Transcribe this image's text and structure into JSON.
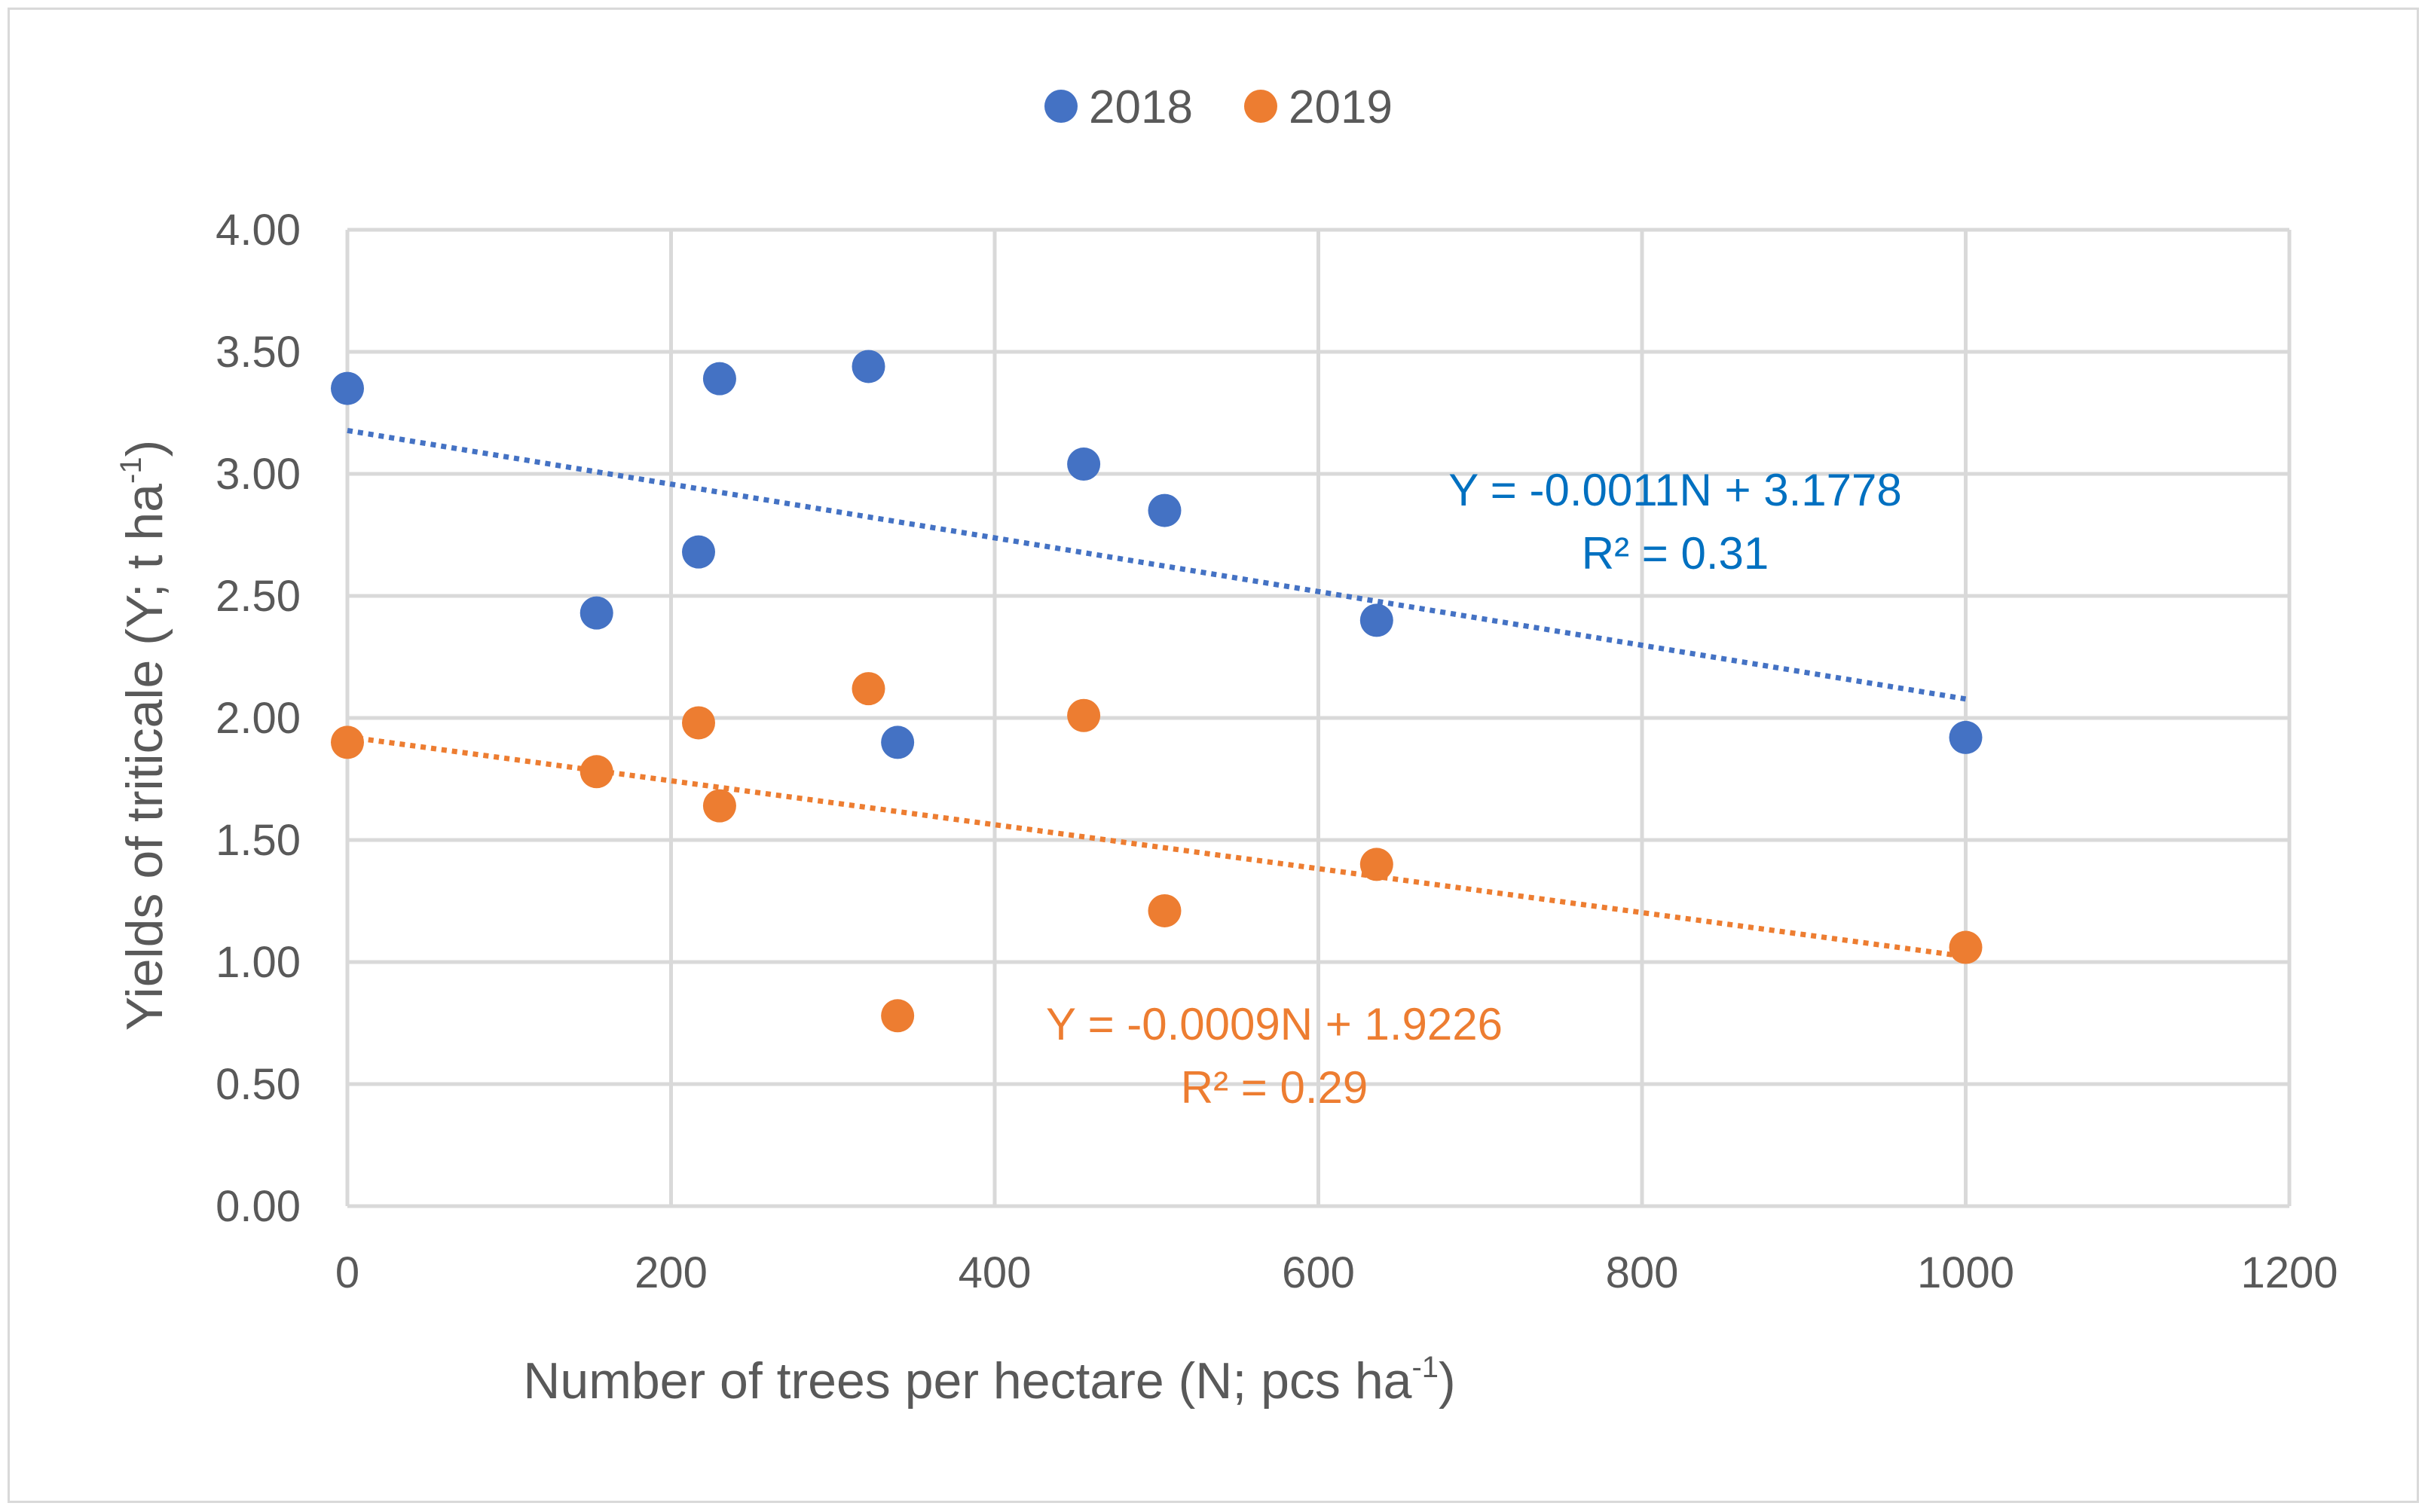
{
  "chart_data": {
    "type": "scatter",
    "xlabel": "Number of trees per hectare (N; pcs ha",
    "xlabel_sup": "-1",
    "xlabel_end": ")",
    "ylabel": "Yields of triticale (Y; t ha",
    "ylabel_sup": "-1",
    "ylabel_end": ")",
    "xlim": [
      0,
      1200
    ],
    "ylim": [
      0,
      4
    ],
    "x_ticks": [
      "0",
      "200",
      "400",
      "600",
      "800",
      "1000",
      "1200"
    ],
    "y_ticks": [
      "0.00",
      "0.50",
      "1.00",
      "1.50",
      "2.00",
      "2.50",
      "3.00",
      "3.50",
      "4.00"
    ],
    "grid": true,
    "legend": "top-center",
    "series": [
      {
        "name": "2018",
        "color": "#4472c4",
        "points": [
          {
            "x": 0,
            "y": 3.35
          },
          {
            "x": 154,
            "y": 2.43
          },
          {
            "x": 217,
            "y": 2.68
          },
          {
            "x": 230,
            "y": 3.39
          },
          {
            "x": 322,
            "y": 3.44
          },
          {
            "x": 340,
            "y": 1.9
          },
          {
            "x": 455,
            "y": 3.04
          },
          {
            "x": 505,
            "y": 2.85
          },
          {
            "x": 636,
            "y": 2.4
          },
          {
            "x": 1000,
            "y": 1.92
          }
        ],
        "trendline": {
          "slope": -0.0011,
          "intercept": 3.1778,
          "x_range": [
            0,
            1000
          ]
        },
        "equation": "Y = -0.0011N + 3.1778",
        "r2": "R² = 0.31",
        "label_color": "#0070c0"
      },
      {
        "name": "2019",
        "color": "#ed7d31",
        "points": [
          {
            "x": 0,
            "y": 1.9
          },
          {
            "x": 154,
            "y": 1.78
          },
          {
            "x": 217,
            "y": 1.98
          },
          {
            "x": 230,
            "y": 1.64
          },
          {
            "x": 322,
            "y": 2.12
          },
          {
            "x": 340,
            "y": 0.78
          },
          {
            "x": 455,
            "y": 2.01
          },
          {
            "x": 505,
            "y": 1.21
          },
          {
            "x": 636,
            "y": 1.4
          },
          {
            "x": 1000,
            "y": 1.06
          }
        ],
        "trendline": {
          "slope": -0.0009,
          "intercept": 1.9226,
          "x_range": [
            0,
            1000
          ]
        },
        "equation": "Y = -0.0009N + 1.9226",
        "r2": "R² = 0.29",
        "label_color": "#ed7d31"
      }
    ]
  }
}
